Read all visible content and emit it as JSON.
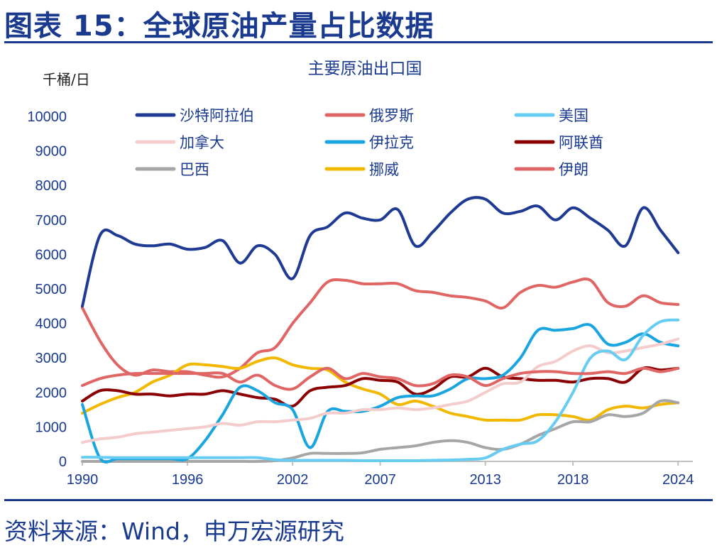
{
  "figure_title": "图表 15：全球原油产量占比数据",
  "source_text": "资料来源：Wind，申万宏源研究",
  "chart_data": {
    "type": "line",
    "title": "主要原油出口国",
    "ylabel": "千桶/日",
    "xlabel": "",
    "x": [
      1990,
      1991,
      1992,
      1993,
      1994,
      1995,
      1996,
      1997,
      1998,
      1999,
      2000,
      2001,
      2002,
      2003,
      2004,
      2005,
      2006,
      2007,
      2008,
      2009,
      2010,
      2011,
      2012,
      2013,
      2014,
      2015,
      2016,
      2017,
      2018,
      2019,
      2020,
      2021,
      2022,
      2023,
      2024
    ],
    "xticks": [
      1990,
      1996,
      2002,
      2007,
      2013,
      2018,
      2024
    ],
    "xlim": [
      1990,
      2024.6
    ],
    "ylim": [
      0,
      10000
    ],
    "yticks": [
      0,
      1000,
      2000,
      3000,
      4000,
      5000,
      6000,
      7000,
      8000,
      9000,
      10000
    ],
    "grid": false,
    "legend_position": "top",
    "series": [
      {
        "name": "沙特阿拉伯",
        "color": "#1f3a93",
        "values": [
          4500,
          6550,
          6550,
          6300,
          6250,
          6300,
          6150,
          6200,
          6400,
          5750,
          6250,
          6000,
          5300,
          6550,
          6800,
          7200,
          7050,
          7000,
          7300,
          6250,
          6650,
          7200,
          7600,
          7600,
          7200,
          7250,
          7400,
          7000,
          7350,
          7050,
          6700,
          6250,
          7350,
          6700,
          6050
        ]
      },
      {
        "name": "俄罗斯",
        "color": "#e06666",
        "values": [
          2200,
          2400,
          2500,
          2550,
          2550,
          2550,
          2550,
          2550,
          2550,
          2300,
          2500,
          2200,
          2100,
          2450,
          2700,
          2400,
          2550,
          2450,
          2400,
          2200,
          2250,
          2500,
          2450,
          2200,
          2400,
          2550,
          2600,
          2600,
          2550,
          2550,
          2600,
          2550,
          2700,
          2600,
          2700
        ]
      },
      {
        "name": "美国",
        "color": "#66ccf2",
        "values": [
          120,
          120,
          110,
          110,
          110,
          110,
          110,
          110,
          110,
          110,
          110,
          50,
          30,
          30,
          30,
          30,
          20,
          20,
          20,
          20,
          30,
          40,
          60,
          100,
          350,
          500,
          600,
          1150,
          2000,
          3000,
          3200,
          2950,
          3650,
          4050,
          4100
        ]
      },
      {
        "name": "加拿大",
        "color": "#f5cccc",
        "values": [
          550,
          650,
          700,
          800,
          850,
          900,
          950,
          1000,
          1100,
          1050,
          1150,
          1150,
          1200,
          1250,
          1400,
          1400,
          1500,
          1500,
          1550,
          1500,
          1550,
          1650,
          1750,
          2000,
          2250,
          2300,
          2750,
          2900,
          3200,
          3350,
          3150,
          3200,
          3300,
          3400,
          3550
        ]
      },
      {
        "name": "伊拉克",
        "color": "#1ba5e0",
        "values": [
          1650,
          100,
          80,
          80,
          80,
          80,
          80,
          600,
          1350,
          2150,
          2050,
          1700,
          1500,
          400,
          1450,
          1450,
          1450,
          1600,
          1850,
          1900,
          1900,
          2100,
          2400,
          2400,
          2500,
          3000,
          3800,
          3800,
          3850,
          3950,
          3400,
          3450,
          3700,
          3450,
          3350
        ]
      },
      {
        "name": "阿联酋",
        "color": "#8b0000",
        "values": [
          1750,
          2050,
          2050,
          1950,
          1950,
          1900,
          1950,
          1950,
          2050,
          1950,
          1850,
          1800,
          1600,
          2050,
          2150,
          2200,
          2400,
          2350,
          2300,
          1950,
          2100,
          2450,
          2450,
          2700,
          2450,
          2400,
          2350,
          2350,
          2300,
          2400,
          2400,
          2300,
          2700,
          2650,
          2700
        ]
      },
      {
        "name": "巴西",
        "color": "#a6a6a6",
        "values": [
          0,
          0,
          0,
          0,
          0,
          0,
          0,
          0,
          0,
          0,
          0,
          20,
          100,
          230,
          230,
          230,
          250,
          350,
          400,
          450,
          550,
          600,
          550,
          400,
          350,
          500,
          750,
          950,
          1150,
          1150,
          1350,
          1300,
          1400,
          1750,
          1700
        ]
      },
      {
        "name": "挪威",
        "color": "#f2b800",
        "values": [
          1400,
          1650,
          1850,
          2000,
          2300,
          2500,
          2800,
          2800,
          2750,
          2700,
          2900,
          3000,
          2800,
          2700,
          2650,
          2300,
          2100,
          1950,
          1650,
          1750,
          1600,
          1400,
          1300,
          1200,
          1200,
          1200,
          1350,
          1350,
          1300,
          1200,
          1500,
          1600,
          1550,
          1650,
          1700
        ]
      },
      {
        "name": "伊朗",
        "color": "#e06666",
        "values": [
          4450,
          3500,
          2800,
          2500,
          2650,
          2600,
          2600,
          2500,
          2450,
          2700,
          3150,
          3300,
          4000,
          4600,
          5200,
          5250,
          5150,
          5150,
          5150,
          4950,
          4900,
          4800,
          4750,
          4650,
          4450,
          4900,
          5100,
          5050,
          5200,
          5250,
          4600,
          4500,
          4800,
          4600,
          4550
        ]
      }
    ]
  }
}
